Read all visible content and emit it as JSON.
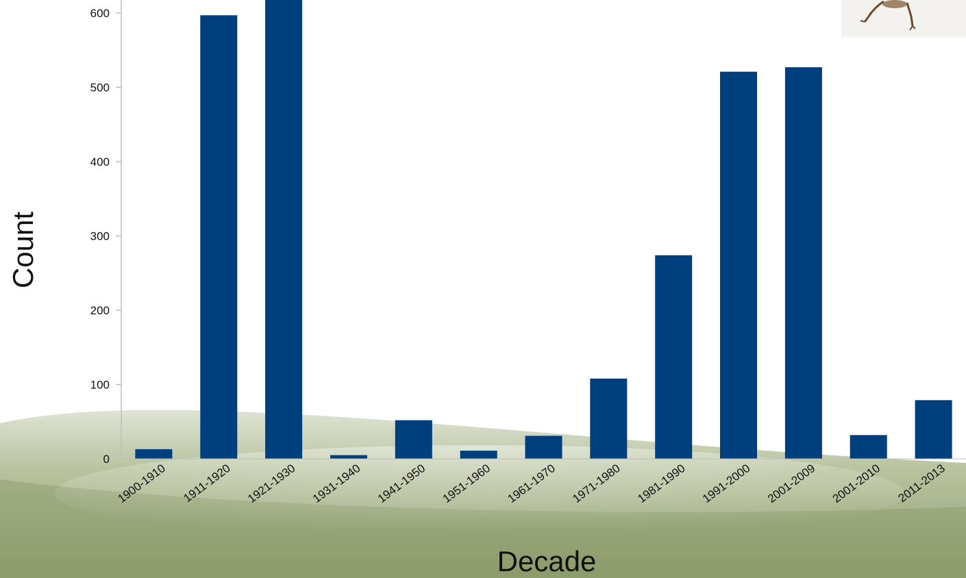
{
  "chart_data": {
    "type": "bar",
    "title": "",
    "xlabel": "Decade",
    "ylabel": "Count",
    "categories": [
      "1900-1910",
      "1911-1920",
      "1921-1930",
      "1931-1940",
      "1941-1950",
      "1951-1960",
      "1961-1970",
      "1971-1980",
      "1981-1990",
      "1991-2000",
      "2001-2009",
      "2001-2010",
      "2011-2013"
    ],
    "values": [
      13,
      597,
      625,
      5,
      52,
      11,
      31,
      108,
      274,
      521,
      527,
      32,
      79
    ],
    "ylim": [
      0,
      625
    ],
    "yticks": [
      0,
      100,
      200,
      300,
      400,
      500,
      600
    ],
    "grid": false,
    "legend": "none",
    "bar_color": "#003F7D"
  },
  "decor": {
    "thumbnail": "insect-specimen-image"
  }
}
